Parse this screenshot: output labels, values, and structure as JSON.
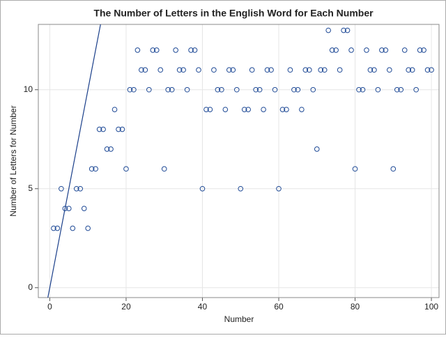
{
  "chart_data": {
    "type": "scatter",
    "title": "The Number of Letters in the English Word for Each Number",
    "x_label": "Number",
    "y_label": "Number of Letters for Number",
    "x": [
      1,
      2,
      3,
      4,
      5,
      6,
      7,
      8,
      9,
      10,
      11,
      12,
      13,
      14,
      15,
      16,
      17,
      18,
      19,
      20,
      21,
      22,
      23,
      24,
      25,
      26,
      27,
      28,
      29,
      30,
      31,
      32,
      33,
      34,
      35,
      36,
      37,
      38,
      39,
      40,
      41,
      42,
      43,
      44,
      45,
      46,
      47,
      48,
      49,
      50,
      51,
      52,
      53,
      54,
      55,
      56,
      57,
      58,
      59,
      60,
      61,
      62,
      63,
      64,
      65,
      66,
      67,
      68,
      69,
      70,
      71,
      72,
      73,
      74,
      75,
      76,
      77,
      78,
      79,
      80,
      81,
      82,
      83,
      84,
      85,
      86,
      87,
      88,
      89,
      90,
      91,
      92,
      93,
      94,
      95,
      96,
      97,
      98,
      99,
      100
    ],
    "values": [
      3,
      3,
      5,
      4,
      4,
      3,
      5,
      5,
      4,
      3,
      6,
      6,
      8,
      8,
      7,
      7,
      9,
      8,
      8,
      6,
      10,
      10,
      12,
      11,
      11,
      10,
      12,
      12,
      11,
      6,
      10,
      10,
      12,
      11,
      11,
      10,
      12,
      12,
      11,
      5,
      9,
      9,
      11,
      10,
      10,
      9,
      11,
      11,
      10,
      5,
      9,
      9,
      11,
      10,
      10,
      9,
      11,
      11,
      10,
      5,
      9,
      9,
      11,
      10,
      10,
      9,
      11,
      11,
      10,
      7,
      11,
      11,
      13,
      12,
      12,
      11,
      13,
      13,
      12,
      6,
      10,
      10,
      12,
      11,
      11,
      10,
      12,
      12,
      11,
      6,
      10,
      10,
      12,
      11,
      11,
      10,
      12,
      12,
      11,
      11
    ],
    "color": "#1f4a96",
    "identity_line": true,
    "line_color": "#1a3f8a",
    "xlim": [
      -3,
      102
    ],
    "ylim": [
      -0.5,
      13.3
    ],
    "xticks": [
      0,
      20,
      40,
      60,
      80,
      100
    ],
    "yticks": [
      0,
      5,
      10
    ],
    "grid": true
  }
}
